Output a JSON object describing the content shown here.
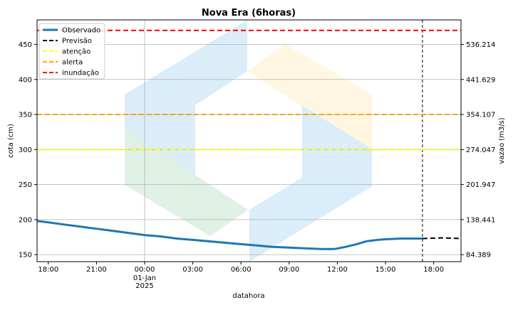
{
  "chart_data": {
    "type": "line",
    "title": "Nova Era (6horas)",
    "xlabel": "datahora",
    "ylabel": "cota (cm)",
    "y2label": "vazao (m3/s)",
    "ylim": [
      140,
      485
    ],
    "xlim_hours": [
      -6.7,
      19.7
    ],
    "grid": true,
    "legend_position": "top-left",
    "y_ticks": [
      150,
      200,
      250,
      300,
      350,
      400,
      450
    ],
    "y2_ticks": [
      {
        "cota": 150,
        "label": "84.389"
      },
      {
        "cota": 200,
        "label": "138.441"
      },
      {
        "cota": 250,
        "label": "201.947"
      },
      {
        "cota": 300,
        "label": "274.047"
      },
      {
        "cota": 350,
        "label": "354.107"
      },
      {
        "cota": 400,
        "label": "441.629"
      },
      {
        "cota": 450,
        "label": "536.214"
      }
    ],
    "x_ticks": [
      {
        "h": -6,
        "label": "18:00"
      },
      {
        "h": -3,
        "label": "21:00"
      },
      {
        "h": 0,
        "label": "00:00",
        "sub1": "01-Jan",
        "sub2": "2025"
      },
      {
        "h": 3,
        "label": "03:00"
      },
      {
        "h": 6,
        "label": "06:00"
      },
      {
        "h": 9,
        "label": "09:00"
      },
      {
        "h": 12,
        "label": "12:00"
      },
      {
        "h": 15,
        "label": "15:00"
      },
      {
        "h": 18,
        "label": "18:00"
      }
    ],
    "vline_hour": 17.3,
    "series": [
      {
        "name": "Observado",
        "color": "#1f77b4",
        "style": "solid",
        "points": [
          [
            -6.7,
            198
          ],
          [
            -6,
            196
          ],
          [
            -5,
            193
          ],
          [
            -4,
            190
          ],
          [
            -3,
            187
          ],
          [
            -2,
            184
          ],
          [
            -1,
            181
          ],
          [
            0,
            178
          ],
          [
            1,
            176
          ],
          [
            2,
            173
          ],
          [
            3,
            171
          ],
          [
            4,
            169
          ],
          [
            5,
            167
          ],
          [
            6,
            165
          ],
          [
            7,
            163
          ],
          [
            8,
            161
          ],
          [
            9,
            160
          ],
          [
            10,
            159
          ],
          [
            11,
            158
          ],
          [
            11.8,
            158
          ],
          [
            12.5,
            161
          ],
          [
            13.2,
            165
          ],
          [
            13.8,
            169
          ],
          [
            14.5,
            171
          ],
          [
            15,
            172
          ],
          [
            16,
            173
          ],
          [
            17.3,
            173
          ]
        ]
      },
      {
        "name": "Previsão",
        "color": "#000000",
        "style": "dashed",
        "points": [
          [
            17.3,
            173
          ],
          [
            18.5,
            174
          ],
          [
            19.7,
            173
          ]
        ]
      },
      {
        "name": "atenção",
        "color": "#ffff00",
        "style": "dashed",
        "y": 300
      },
      {
        "name": "alerta",
        "color": "#ffa500",
        "style": "dashed",
        "y": 350
      },
      {
        "name": "inundação",
        "color": "#ff0000",
        "style": "dashed",
        "y": 470
      }
    ]
  }
}
